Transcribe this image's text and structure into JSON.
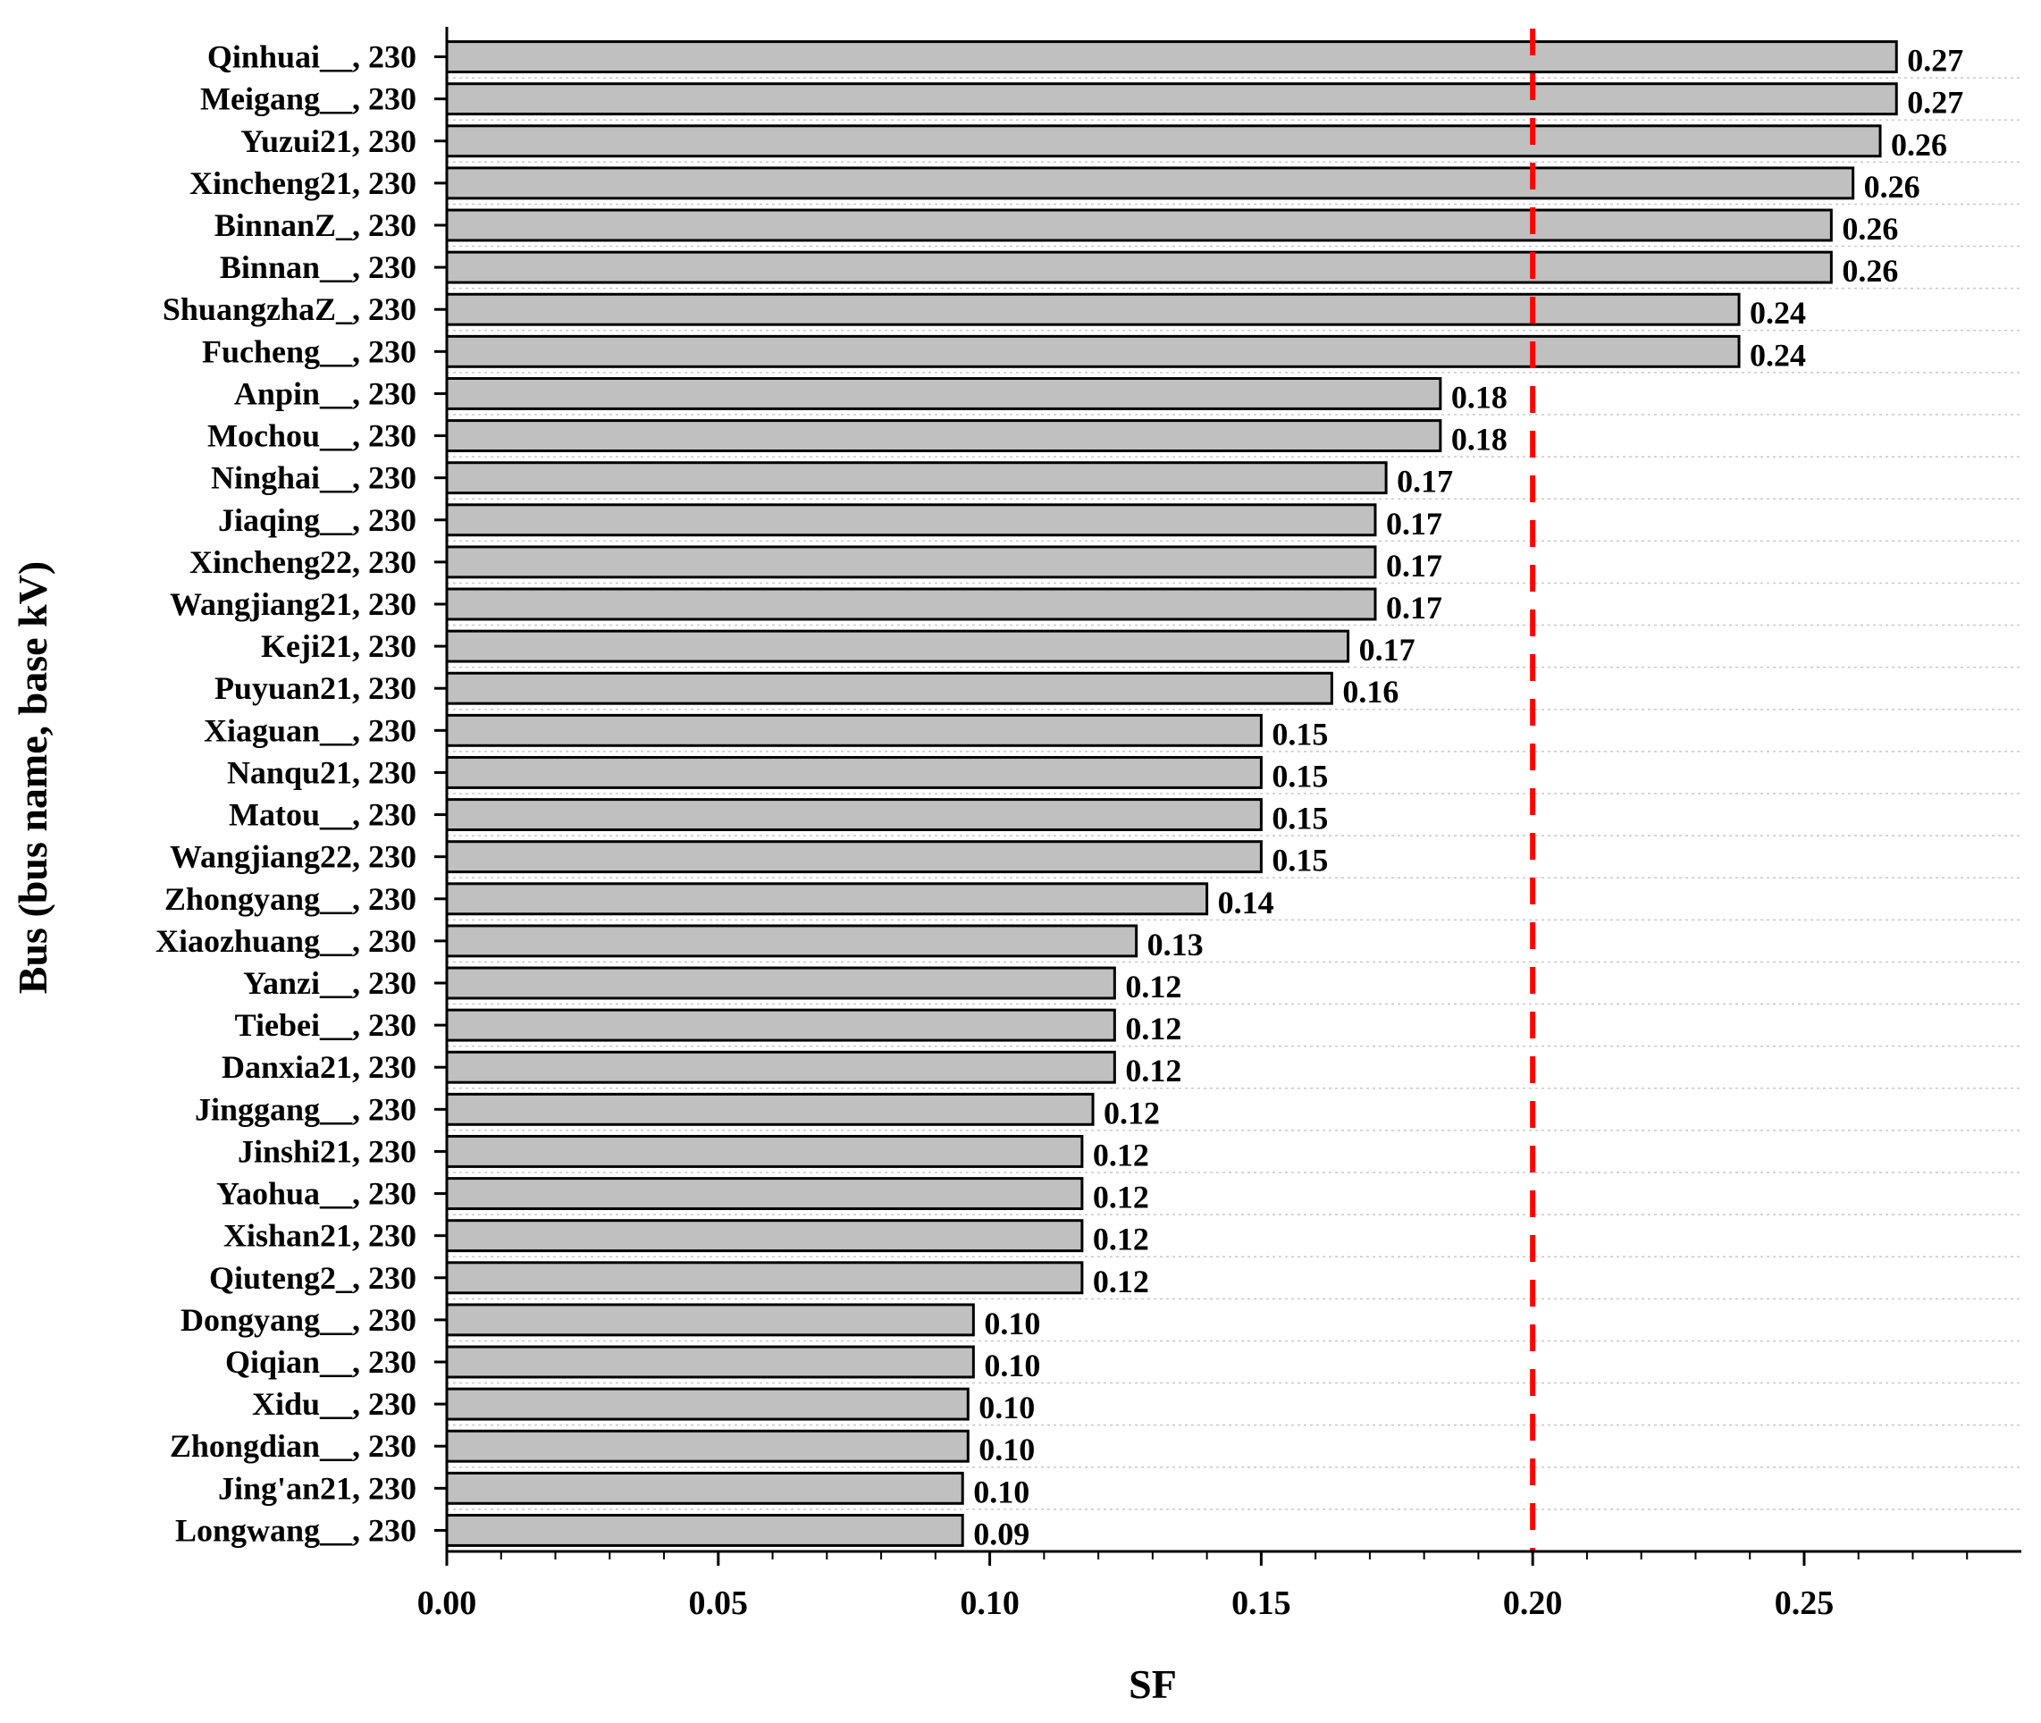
{
  "chart_data": {
    "type": "bar",
    "orientation": "horizontal",
    "xlabel": "SF",
    "ylabel": "Bus (bus name, base kV)",
    "xlim": [
      0,
      0.29
    ],
    "xticks": [
      "0.00",
      "0.05",
      "0.10",
      "0.15",
      "0.20",
      "0.25"
    ],
    "x_tick_values": [
      0,
      0.05,
      0.1,
      0.15,
      0.2,
      0.25
    ],
    "grid": "horizontal dotted",
    "categories": [
      "Qinhuai__, 230",
      "Meigang__, 230",
      "Yuzui21, 230",
      "Xincheng21, 230",
      "BinnanZ_, 230",
      "Binnan__, 230",
      "ShuangzhaZ_, 230",
      "Fucheng__, 230",
      "Anpin__, 230",
      "Mochou__, 230",
      "Ninghai__, 230",
      "Jiaqing__, 230",
      "Xincheng22, 230",
      "Wangjiang21, 230",
      "Keji21, 230",
      "Puyuan21, 230",
      "Xiaguan__, 230",
      "Nanqu21, 230",
      "Matou__, 230",
      "Wangjiang22, 230",
      "Zhongyang__, 230",
      "Xiaozhuang__, 230",
      "Yanzi__, 230",
      "Tiebei__, 230",
      "Danxia21, 230",
      "Jinggang__, 230",
      "Jinshi21, 230",
      "Yaohua__, 230",
      "Xishan21, 230",
      "Qiuteng2_, 230",
      "Dongyang__, 230",
      "Qiqian__, 230",
      "Xidu__, 230",
      "Zhongdian__, 230",
      "Jing'an21, 230",
      "Longwang__, 230"
    ],
    "values": [
      0.267,
      0.267,
      0.264,
      0.259,
      0.255,
      0.255,
      0.238,
      0.238,
      0.183,
      0.183,
      0.173,
      0.171,
      0.171,
      0.171,
      0.166,
      0.163,
      0.15,
      0.15,
      0.15,
      0.15,
      0.14,
      0.127,
      0.123,
      0.123,
      0.123,
      0.119,
      0.117,
      0.117,
      0.117,
      0.117,
      0.097,
      0.097,
      0.096,
      0.096,
      0.095,
      0.095
    ],
    "value_labels": [
      "0.27",
      "0.27",
      "0.26",
      "0.26",
      "0.26",
      "0.26",
      "0.24",
      "0.24",
      "0.18",
      "0.18",
      "0.17",
      "0.17",
      "0.17",
      "0.17",
      "0.17",
      "0.16",
      "0.15",
      "0.15",
      "0.15",
      "0.15",
      "0.14",
      "0.13",
      "0.12",
      "0.12",
      "0.12",
      "0.12",
      "0.12",
      "0.12",
      "0.12",
      "0.12",
      "0.10",
      "0.10",
      "0.10",
      "0.10",
      "0.10",
      "0.09"
    ],
    "threshold": {
      "value": 0.2,
      "style": "dashed",
      "color": "#ff0000"
    },
    "bar_color": "#c0c0c0",
    "bar_edge_color": "#000000"
  }
}
